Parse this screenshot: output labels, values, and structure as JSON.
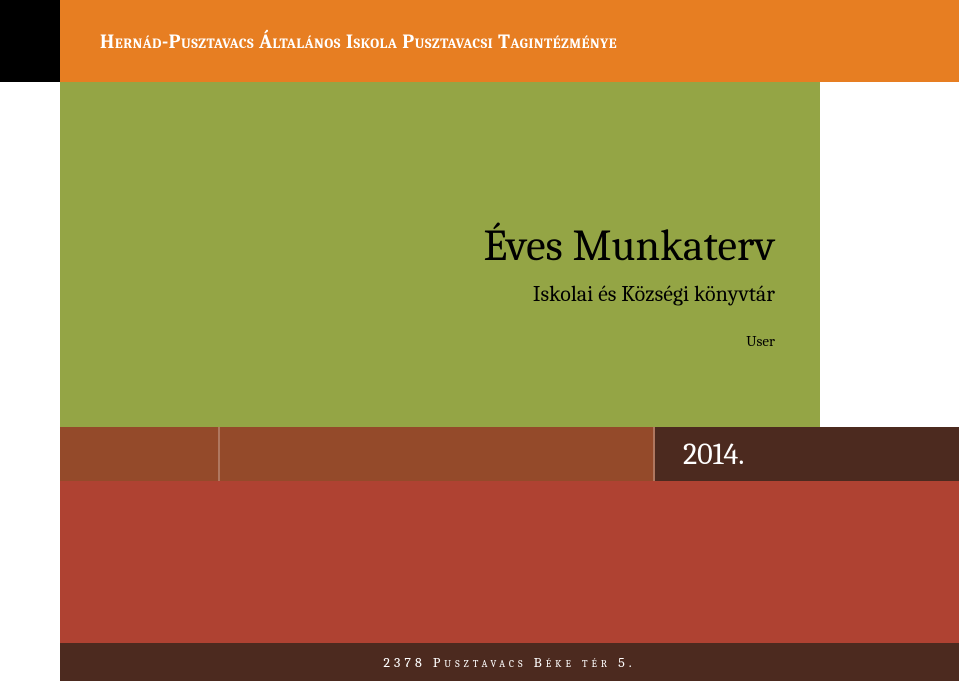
{
  "header": {
    "text": "Hernád-Pusztavacs Általános Iskola Pusztavacsi Tagintézménye",
    "text_color": "#ffffff",
    "background_color": "#e77e22"
  },
  "left_margin": {
    "top_color": "#000000",
    "bottom_color": "#ffffff"
  },
  "main": {
    "title": "Éves Munkaterv",
    "subtitle": "Iskolai és Községi könyvtár",
    "user": "User",
    "background_color": "#94a545",
    "text_color": "#000000"
  },
  "year_row": {
    "year": "2014.",
    "background_color": "#944a2a",
    "year_cell_color": "#4c2a1f",
    "year_text_color": "#ffffff"
  },
  "lower": {
    "background_color": "#af4232"
  },
  "footer": {
    "text": "2378 Pusztavacs Béke tér 5.",
    "background_color": "#4c2a1f",
    "text_color": "#ffffff"
  }
}
